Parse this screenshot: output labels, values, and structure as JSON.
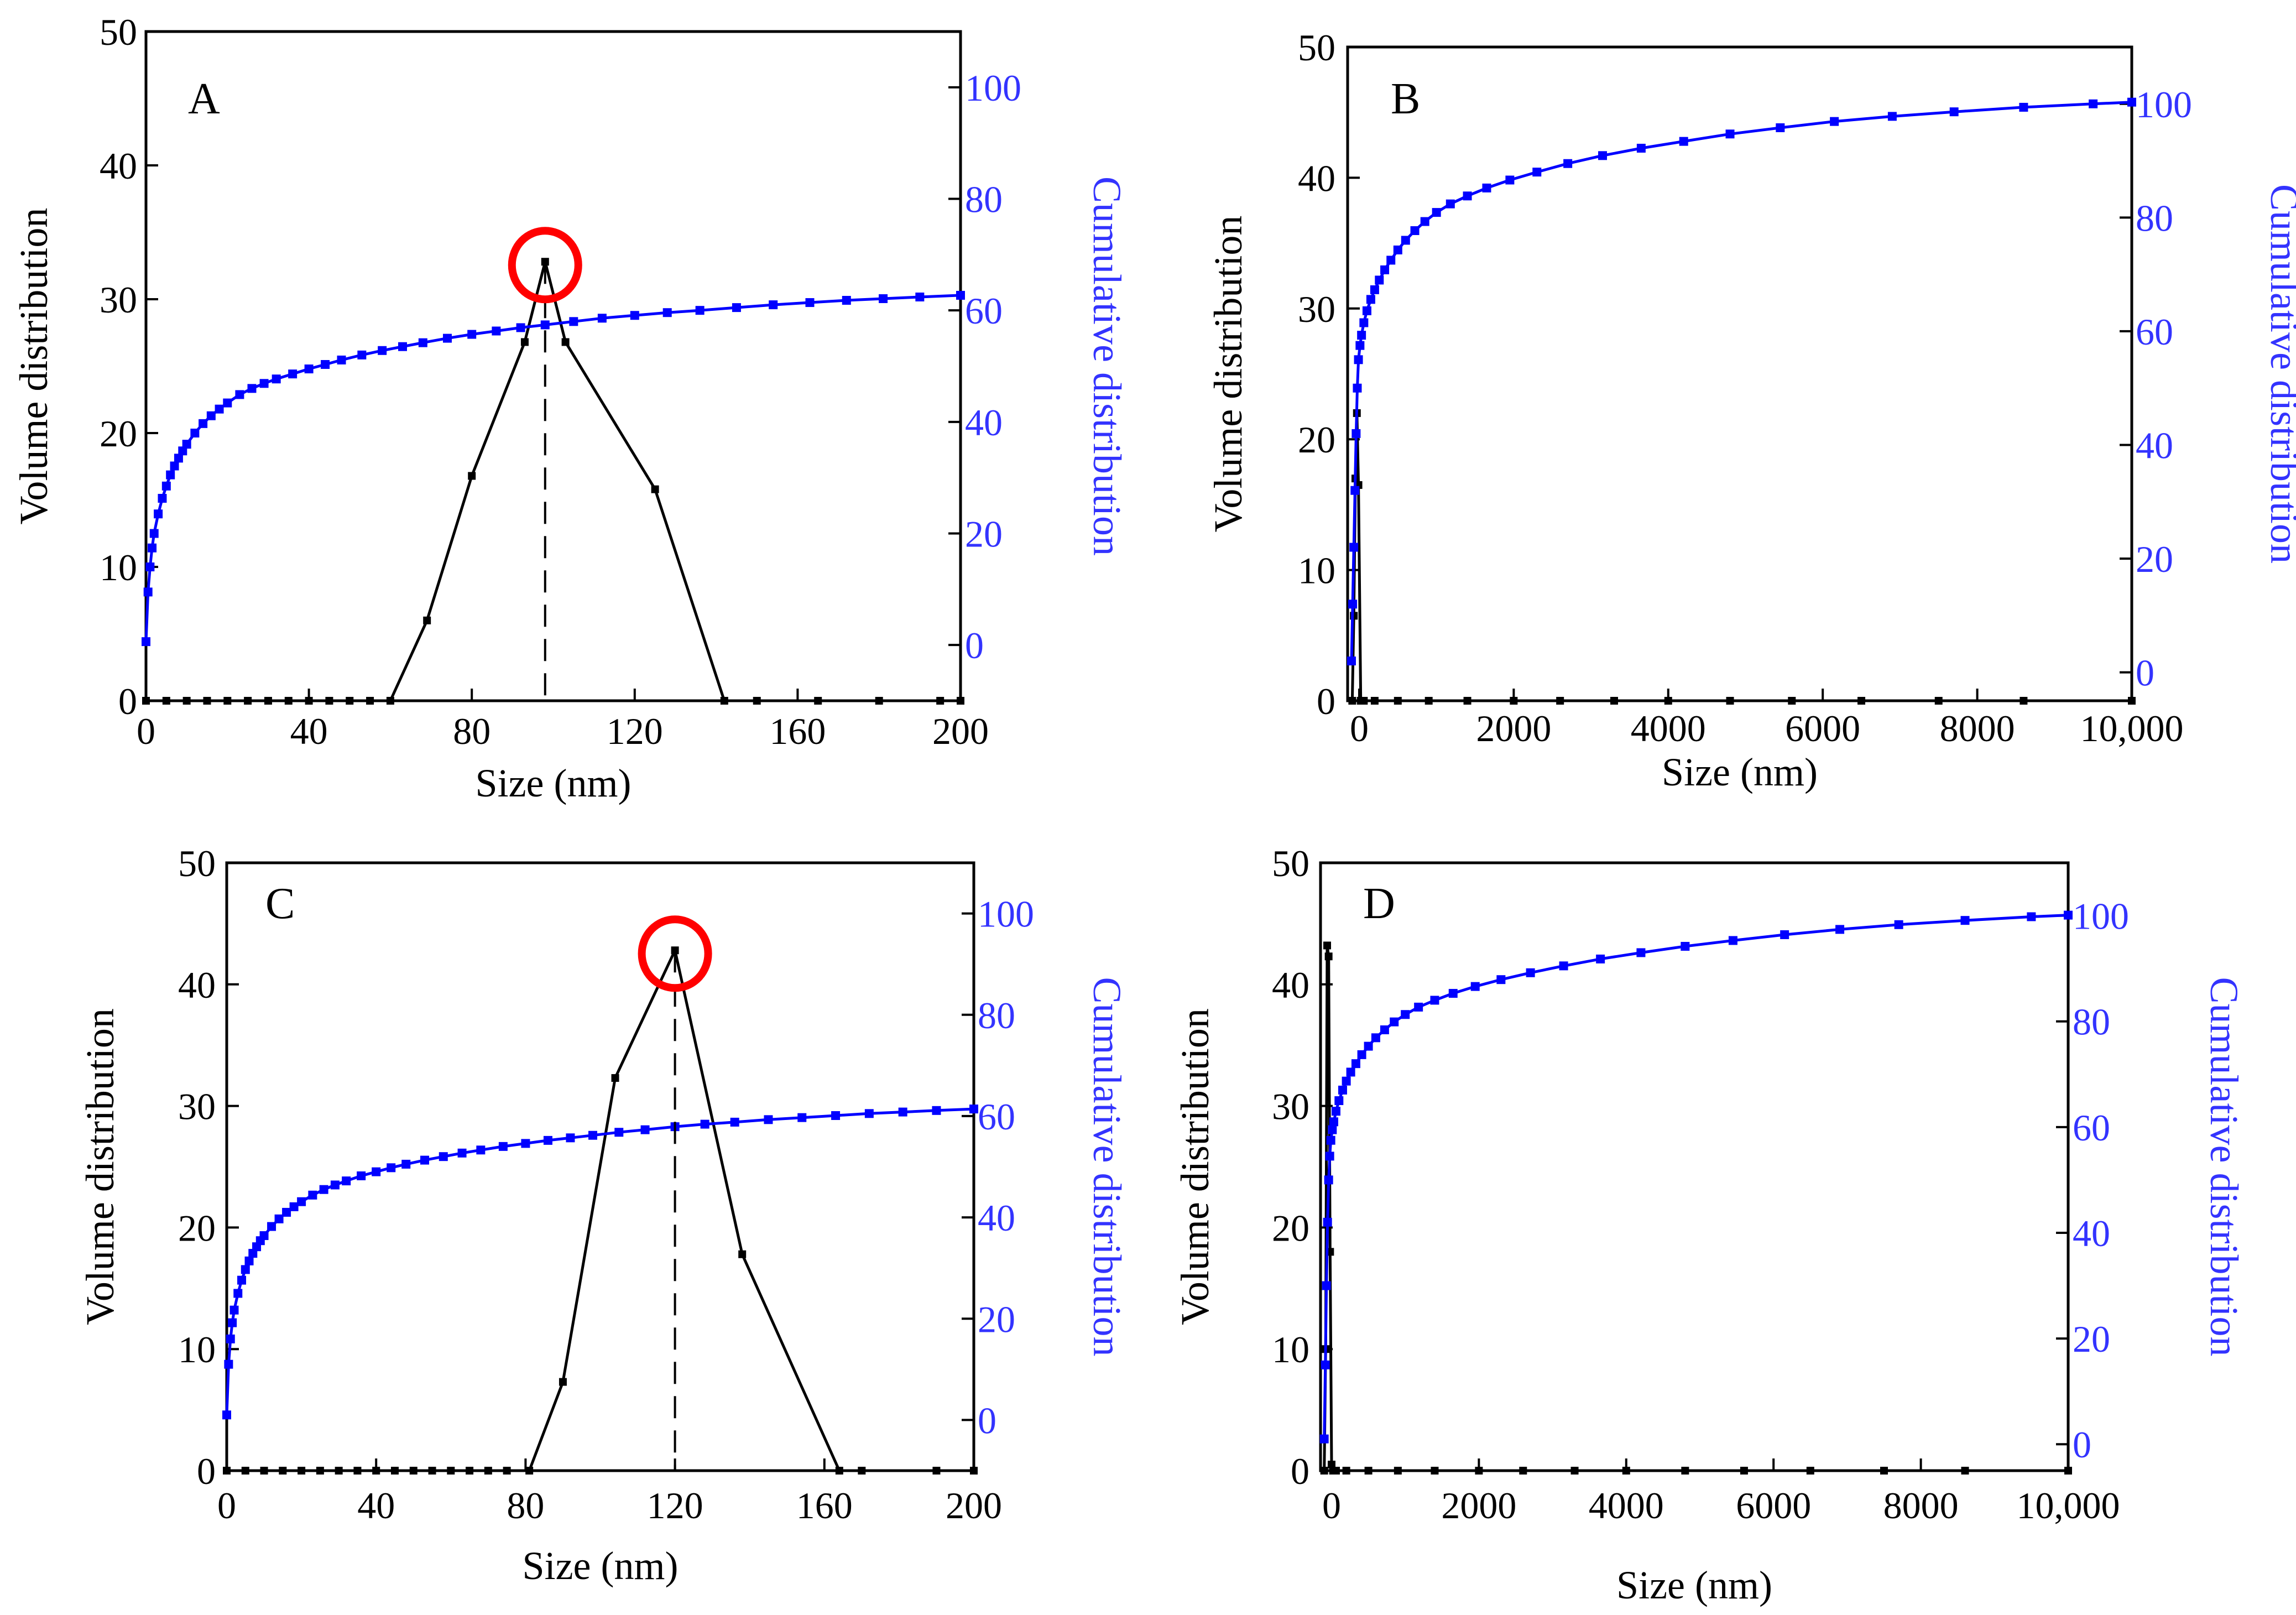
{
  "colors": {
    "axis": "#000000",
    "volume_series": "#000000",
    "cumulative_series": "#0000ff",
    "cumulative_axis_text": "#3333ff",
    "highlight_circle": "#ff0000"
  },
  "chart_data": [
    {
      "panel_label": "A",
      "type": "line",
      "xlabel": "Size (nm)",
      "ylabel": "Volume distribution",
      "y2label": "Cumulative distribution",
      "xlim": [
        0,
        200
      ],
      "ylim": [
        0,
        50
      ],
      "y2lim": [
        -10,
        110
      ],
      "x_ticks": [
        0,
        40,
        80,
        120,
        160,
        200
      ],
      "x_tick_labels": [
        "0",
        "40",
        "80",
        "120",
        "160",
        "200"
      ],
      "y_ticks": [
        0,
        10,
        20,
        30,
        40,
        50
      ],
      "y_tick_labels": [
        "0",
        "10",
        "20",
        "30",
        "40",
        "50"
      ],
      "y2_ticks": [
        0,
        20,
        40,
        60,
        80,
        100
      ],
      "y2_tick_labels": [
        "0",
        "20",
        "40",
        "60",
        "80",
        "100"
      ],
      "peak_highlight": {
        "x": 98,
        "y": 32.8
      },
      "series": [
        {
          "name": "Volume distribution",
          "axis": "left",
          "x": [
            0,
            5,
            10,
            15,
            20,
            25,
            30,
            35,
            40,
            45,
            50,
            55,
            60,
            69,
            80,
            93,
            98,
            103,
            125,
            142,
            150,
            165,
            180,
            195,
            200
          ],
          "y": [
            0,
            0,
            0,
            0,
            0,
            0,
            0,
            0,
            0,
            0,
            0,
            0,
            0,
            6,
            16.8,
            26.8,
            32.8,
            26.8,
            15.8,
            0,
            0,
            0,
            0,
            0,
            0
          ]
        },
        {
          "name": "Cumulative distribution",
          "axis": "right",
          "x": [
            0,
            0.5,
            1,
            1.5,
            2,
            3,
            4,
            5,
            6,
            7,
            8,
            9,
            10,
            12,
            14,
            16,
            18,
            20,
            23,
            26,
            29,
            32,
            36,
            40,
            44,
            48,
            53,
            58,
            63,
            68,
            74,
            80,
            86,
            92,
            98,
            105,
            112,
            120,
            128,
            136,
            145,
            154,
            163,
            172,
            181,
            190,
            200
          ],
          "y": [
            0.6,
            9.5,
            14,
            17.4,
            20,
            23.5,
            26.3,
            28.5,
            30.5,
            32.1,
            33.5,
            34.8,
            36.0,
            38.0,
            39.7,
            41.1,
            42.3,
            43.4,
            44.9,
            46.0,
            46.9,
            47.7,
            48.6,
            49.5,
            50.3,
            51.1,
            52.0,
            52.8,
            53.5,
            54.2,
            55.0,
            55.7,
            56.3,
            56.9,
            57.4,
            58.0,
            58.6,
            59.1,
            59.6,
            60.0,
            60.5,
            61.0,
            61.4,
            61.8,
            62.1,
            62.4,
            62.7
          ]
        }
      ]
    },
    {
      "panel_label": "B",
      "type": "line",
      "xlabel": "Size (nm)",
      "ylabel": "Volume distribution",
      "y2label": "Cumulative distribution",
      "xlim": [
        -150,
        10000
      ],
      "ylim": [
        0,
        50
      ],
      "y2lim": [
        -5,
        110
      ],
      "x_ticks": [
        0,
        2000,
        4000,
        6000,
        8000,
        10000
      ],
      "x_tick_labels": [
        "0",
        "2000",
        "4000",
        "6000",
        "8000",
        "10,000"
      ],
      "y_ticks": [
        0,
        10,
        20,
        30,
        40,
        50
      ],
      "y_tick_labels": [
        "0",
        "10",
        "20",
        "30",
        "40",
        "50"
      ],
      "y2_ticks": [
        0,
        20,
        40,
        60,
        80,
        100
      ],
      "y2_tick_labels": [
        "0",
        "20",
        "40",
        "60",
        "80",
        "100"
      ],
      "series": [
        {
          "name": "Volume distribution",
          "axis": "left",
          "x": [
            -90,
            -70,
            -50,
            -30,
            -10,
            20,
            60,
            200,
            500,
            900,
            1400,
            2000,
            2600,
            3300,
            4000,
            4800,
            5600,
            6500,
            7500,
            8600,
            10000
          ],
          "y": [
            0,
            6.5,
            17,
            22,
            16.5,
            0,
            0,
            0,
            0,
            0,
            0,
            0,
            0,
            0,
            0,
            0,
            0,
            0,
            0,
            0,
            0
          ]
        },
        {
          "name": "Cumulative distribution",
          "axis": "right",
          "x": [
            -100,
            -85,
            -70,
            -55,
            -40,
            -25,
            -10,
            10,
            30,
            60,
            100,
            150,
            200,
            260,
            330,
            410,
            500,
            600,
            720,
            850,
            1000,
            1180,
            1400,
            1650,
            1950,
            2300,
            2700,
            3150,
            3650,
            4200,
            4800,
            5450,
            6150,
            6900,
            7700,
            8600,
            9500,
            10000
          ],
          "y": [
            2,
            12,
            22,
            32,
            42,
            50,
            55,
            57.5,
            59.3,
            61.5,
            63.6,
            65.6,
            67.3,
            69,
            70.8,
            72.5,
            74.3,
            76,
            77.7,
            79.3,
            80.9,
            82.4,
            83.8,
            85.2,
            86.6,
            88,
            89.5,
            90.9,
            92.2,
            93.4,
            94.7,
            95.8,
            96.9,
            97.8,
            98.6,
            99.4,
            100,
            100.3
          ]
        }
      ]
    },
    {
      "panel_label": "C",
      "type": "line",
      "xlabel": "Size (nm)",
      "ylabel": "Volume distribution",
      "y2label": "Cumulative distribution",
      "xlim": [
        0,
        200
      ],
      "ylim": [
        0,
        50
      ],
      "y2lim": [
        -10,
        110
      ],
      "x_ticks": [
        0,
        40,
        80,
        120,
        160,
        200
      ],
      "x_tick_labels": [
        "0",
        "40",
        "80",
        "120",
        "160",
        "200"
      ],
      "y_ticks": [
        0,
        10,
        20,
        30,
        40,
        50
      ],
      "y_tick_labels": [
        "0",
        "10",
        "20",
        "30",
        "40",
        "50"
      ],
      "y2_ticks": [
        0,
        20,
        40,
        60,
        80,
        100
      ],
      "y2_tick_labels": [
        "0",
        "20",
        "40",
        "60",
        "80",
        "100"
      ],
      "peak_highlight": {
        "x": 120,
        "y": 42.8
      },
      "series": [
        {
          "name": "Volume distribution",
          "axis": "left",
          "x": [
            0,
            5,
            10,
            15,
            20,
            25,
            30,
            35,
            40,
            45,
            50,
            55,
            60,
            65,
            70,
            75,
            81,
            90,
            104,
            120,
            138,
            164,
            170,
            190,
            200
          ],
          "y": [
            0,
            0,
            0,
            0,
            0,
            0,
            0,
            0,
            0,
            0,
            0,
            0,
            0,
            0,
            0,
            0,
            0,
            7.3,
            32.3,
            42.8,
            17.8,
            0,
            0,
            0,
            0
          ]
        },
        {
          "name": "Cumulative distribution",
          "axis": "right",
          "x": [
            0,
            0.5,
            1,
            1.5,
            2,
            3,
            4,
            5,
            6,
            7,
            8,
            9,
            10,
            12,
            14,
            16,
            18,
            20,
            23,
            26,
            29,
            32,
            36,
            40,
            44,
            48,
            53,
            58,
            63,
            68,
            74,
            80,
            86,
            92,
            98,
            105,
            112,
            120,
            128,
            136,
            145,
            154,
            163,
            172,
            181,
            190,
            200
          ],
          "y": [
            1,
            11,
            16,
            19.2,
            21.7,
            25,
            27.6,
            29.7,
            31.4,
            32.9,
            34.2,
            35.4,
            36.4,
            38.2,
            39.7,
            41.0,
            42.1,
            43.1,
            44.4,
            45.5,
            46.4,
            47.2,
            48.2,
            49.0,
            49.8,
            50.5,
            51.3,
            52.0,
            52.7,
            53.3,
            54.0,
            54.6,
            55.2,
            55.7,
            56.2,
            56.8,
            57.3,
            57.9,
            58.4,
            58.8,
            59.3,
            59.7,
            60.1,
            60.5,
            60.8,
            61.1,
            61.4
          ]
        }
      ]
    },
    {
      "panel_label": "D",
      "type": "line",
      "xlabel": "Size (nm)",
      "ylabel": "Volume distribution",
      "y2label": "Cumulative distribution",
      "xlim": [
        -150,
        10000
      ],
      "ylim": [
        0,
        50
      ],
      "y2lim": [
        -5,
        110
      ],
      "x_ticks": [
        0,
        2000,
        4000,
        6000,
        8000,
        10000
      ],
      "x_tick_labels": [
        "0",
        "2000",
        "4000",
        "6000",
        "8000",
        "10,000"
      ],
      "y_ticks": [
        0,
        10,
        20,
        30,
        40,
        50
      ],
      "y_tick_labels": [
        "0",
        "10",
        "20",
        "30",
        "40",
        "50"
      ],
      "y2_ticks": [
        0,
        20,
        40,
        60,
        80,
        100
      ],
      "y2_tick_labels": [
        "0",
        "20",
        "40",
        "60",
        "80",
        "100"
      ],
      "series": [
        {
          "name": "Volume distribution",
          "axis": "left",
          "x": [
            -100,
            -80,
            -60,
            -40,
            -20,
            0,
            20,
            60,
            200,
            500,
            900,
            1400,
            2000,
            2600,
            3300,
            4000,
            4800,
            5600,
            6500,
            7500,
            8600,
            10000
          ],
          "y": [
            0,
            10,
            43.2,
            42.3,
            18,
            0.5,
            0,
            0,
            0,
            0,
            0,
            0,
            0,
            0,
            0,
            0,
            0,
            0,
            0,
            0,
            0,
            0
          ]
        },
        {
          "name": "Cumulative distribution",
          "axis": "right",
          "x": [
            -100,
            -85,
            -70,
            -55,
            -40,
            -25,
            -10,
            10,
            30,
            60,
            100,
            150,
            200,
            260,
            330,
            410,
            500,
            600,
            720,
            850,
            1000,
            1180,
            1400,
            1650,
            1950,
            2300,
            2700,
            3150,
            3650,
            4200,
            4800,
            5450,
            6150,
            6900,
            7700,
            8600,
            9500,
            10000
          ],
          "y": [
            1,
            15,
            30,
            42,
            50,
            54.5,
            57.5,
            59.5,
            61,
            63,
            65,
            67,
            68.7,
            70.4,
            72,
            73.7,
            75.3,
            76.9,
            78.4,
            79.9,
            81.3,
            82.7,
            84,
            85.3,
            86.6,
            87.9,
            89.2,
            90.5,
            91.8,
            93,
            94.2,
            95.3,
            96.4,
            97.4,
            98.3,
            99.1,
            99.8,
            100.1
          ]
        }
      ]
    }
  ]
}
